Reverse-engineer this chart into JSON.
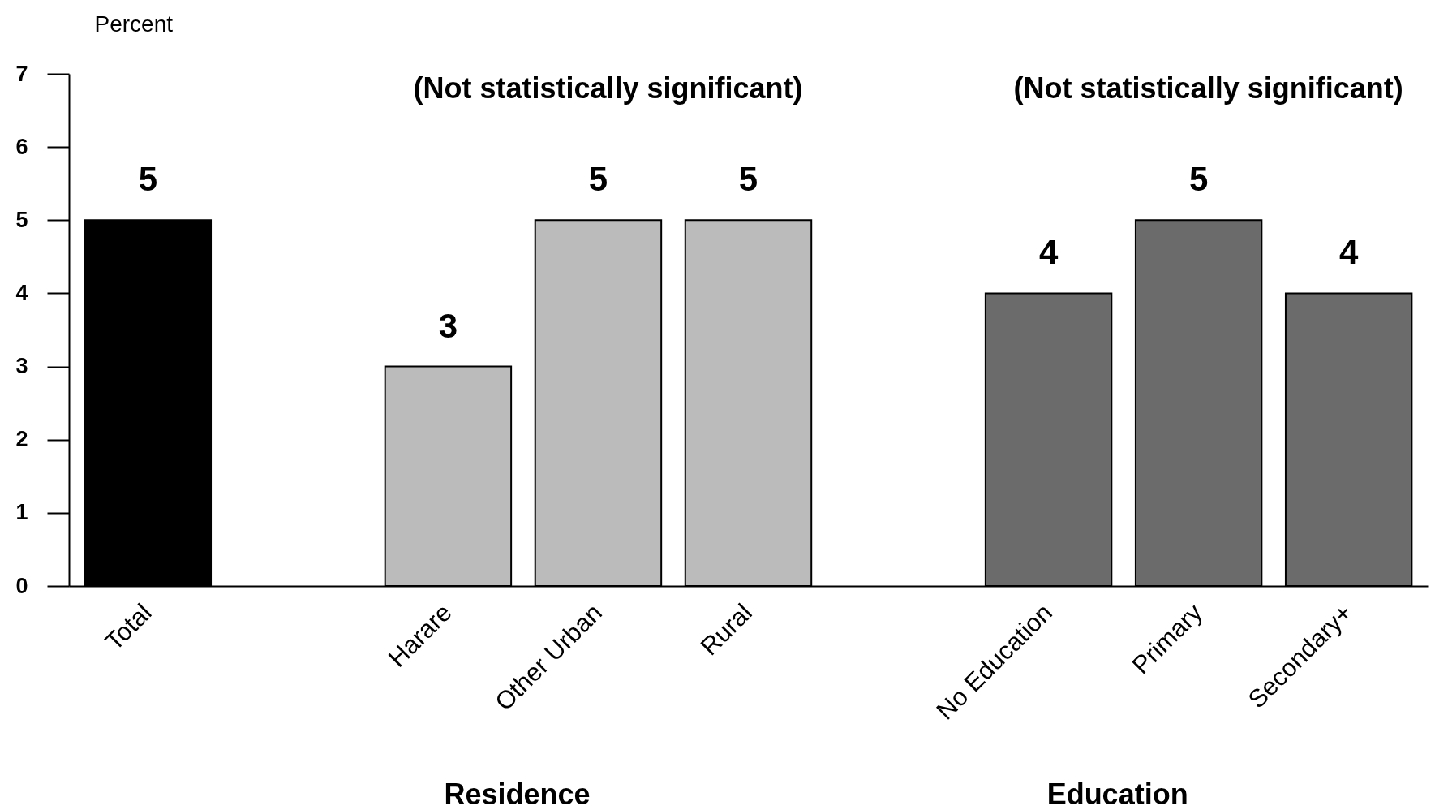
{
  "chart_data": {
    "type": "bar",
    "ylabel": "Percent",
    "categories": [
      "Total",
      null,
      "Harare",
      "Other Urban",
      "Rural",
      null,
      "No Education",
      "Primary",
      "Secondary+"
    ],
    "values": [
      5,
      null,
      3,
      5,
      5,
      null,
      4,
      5,
      4
    ],
    "colors": [
      "#000000",
      null,
      "#bbbbbb",
      "#bbbbbb",
      "#bbbbbb",
      null,
      "#6b6b6b",
      "#6b6b6b",
      "#6b6b6b"
    ],
    "ylim": [
      0,
      7
    ],
    "yticks": [
      0,
      1,
      2,
      3,
      4,
      5,
      6,
      7
    ],
    "data_labels": true,
    "annotations": [
      "(Not statistically significant)",
      "(Not statistically significant)",
      "Residence",
      "Education"
    ]
  }
}
